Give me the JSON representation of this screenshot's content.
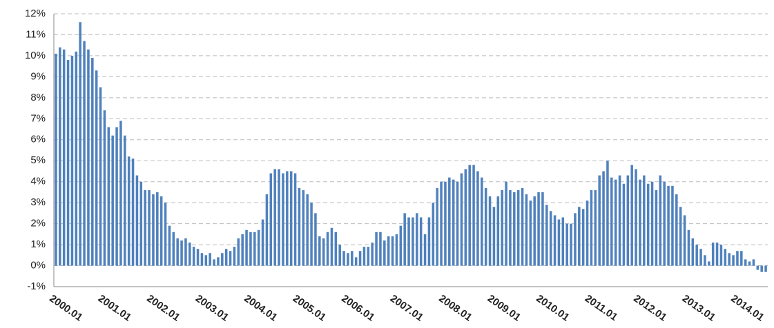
{
  "chart_data": {
    "type": "bar",
    "categories": [
      "2000.01",
      null,
      null,
      null,
      null,
      null,
      null,
      null,
      null,
      null,
      null,
      null,
      "2001.01",
      null,
      null,
      null,
      null,
      null,
      null,
      null,
      null,
      null,
      null,
      null,
      "2002.01",
      null,
      null,
      null,
      null,
      null,
      null,
      null,
      null,
      null,
      null,
      null,
      "2003.01",
      null,
      null,
      null,
      null,
      null,
      null,
      null,
      null,
      null,
      null,
      null,
      "2004.01",
      null,
      null,
      null,
      null,
      null,
      null,
      null,
      null,
      null,
      null,
      null,
      "2005.01",
      null,
      null,
      null,
      null,
      null,
      null,
      null,
      null,
      null,
      null,
      null,
      "2006.01",
      null,
      null,
      null,
      null,
      null,
      null,
      null,
      null,
      null,
      null,
      null,
      "2007.01",
      null,
      null,
      null,
      null,
      null,
      null,
      null,
      null,
      null,
      null,
      null,
      "2008.01",
      null,
      null,
      null,
      null,
      null,
      null,
      null,
      null,
      null,
      null,
      null,
      "2009.01",
      null,
      null,
      null,
      null,
      null,
      null,
      null,
      null,
      null,
      null,
      null,
      "2010.01",
      null,
      null,
      null,
      null,
      null,
      null,
      null,
      null,
      null,
      null,
      null,
      "2011.01",
      null,
      null,
      null,
      null,
      null,
      null,
      null,
      null,
      null,
      null,
      null,
      "2012.01",
      null,
      null,
      null,
      null,
      null,
      null,
      null,
      null,
      null,
      null,
      null,
      "2013.01",
      null,
      null,
      null,
      null,
      null,
      null,
      null,
      null,
      null,
      null,
      null,
      "2014.01",
      null,
      null,
      null,
      null,
      null,
      null,
      null
    ],
    "values": [
      10.1,
      10.4,
      10.3,
      9.8,
      10.0,
      10.2,
      11.6,
      10.7,
      10.3,
      9.9,
      9.3,
      8.5,
      7.4,
      6.6,
      6.2,
      6.6,
      6.9,
      6.2,
      5.2,
      5.1,
      4.3,
      4.0,
      3.6,
      3.6,
      3.4,
      3.5,
      3.3,
      3.0,
      1.9,
      1.6,
      1.3,
      1.2,
      1.3,
      1.1,
      0.9,
      0.8,
      0.6,
      0.5,
      0.6,
      0.3,
      0.4,
      0.6,
      0.8,
      0.7,
      0.9,
      1.3,
      1.5,
      1.7,
      1.6,
      1.6,
      1.7,
      2.2,
      3.4,
      4.4,
      4.6,
      4.6,
      4.4,
      4.5,
      4.5,
      4.4,
      3.7,
      3.6,
      3.4,
      3.0,
      2.5,
      1.4,
      1.3,
      1.6,
      1.8,
      1.6,
      1.0,
      0.7,
      0.6,
      0.7,
      0.4,
      0.7,
      0.9,
      0.9,
      1.1,
      1.6,
      1.6,
      1.2,
      1.4,
      1.4,
      1.5,
      1.9,
      2.5,
      2.3,
      2.3,
      2.5,
      2.3,
      1.5,
      2.3,
      3.0,
      3.7,
      4.0,
      4.0,
      4.2,
      4.1,
      4.0,
      4.4,
      4.6,
      4.8,
      4.8,
      4.5,
      4.2,
      3.7,
      3.3,
      2.8,
      3.3,
      3.6,
      4.0,
      3.6,
      3.5,
      3.6,
      3.7,
      3.4,
      3.1,
      3.3,
      3.5,
      3.5,
      2.9,
      2.6,
      2.4,
      2.2,
      2.3,
      2.0,
      2.0,
      2.5,
      2.8,
      2.7,
      3.1,
      3.6,
      3.6,
      4.3,
      4.5,
      5.0,
      4.2,
      4.1,
      4.3,
      3.9,
      4.3,
      4.8,
      4.6,
      4.1,
      4.3,
      3.9,
      4.0,
      3.6,
      4.3,
      4.0,
      3.8,
      3.8,
      3.4,
      2.8,
      2.4,
      1.7,
      1.3,
      1.0,
      0.8,
      0.5,
      0.2,
      1.1,
      1.1,
      1.0,
      0.8,
      0.6,
      0.5,
      0.7,
      0.7,
      0.3,
      0.2,
      0.3,
      -0.2,
      -0.3,
      -0.3
    ],
    "color": "#4f81bd",
    "ylim": [
      -1,
      12
    ],
    "yticks": [
      {
        "value": -1,
        "label": "-1%"
      },
      {
        "value": 0,
        "label": "0%"
      },
      {
        "value": 1,
        "label": "1%"
      },
      {
        "value": 2,
        "label": "2%"
      },
      {
        "value": 3,
        "label": "3%"
      },
      {
        "value": 4,
        "label": "4%"
      },
      {
        "value": 5,
        "label": "5%"
      },
      {
        "value": 6,
        "label": "6%"
      },
      {
        "value": 7,
        "label": "7%"
      },
      {
        "value": 8,
        "label": "8%"
      },
      {
        "value": 9,
        "label": "9%"
      },
      {
        "value": 10,
        "label": "10%"
      },
      {
        "value": 11,
        "label": "11%"
      },
      {
        "value": 12,
        "label": "12%"
      }
    ],
    "grid": true
  }
}
